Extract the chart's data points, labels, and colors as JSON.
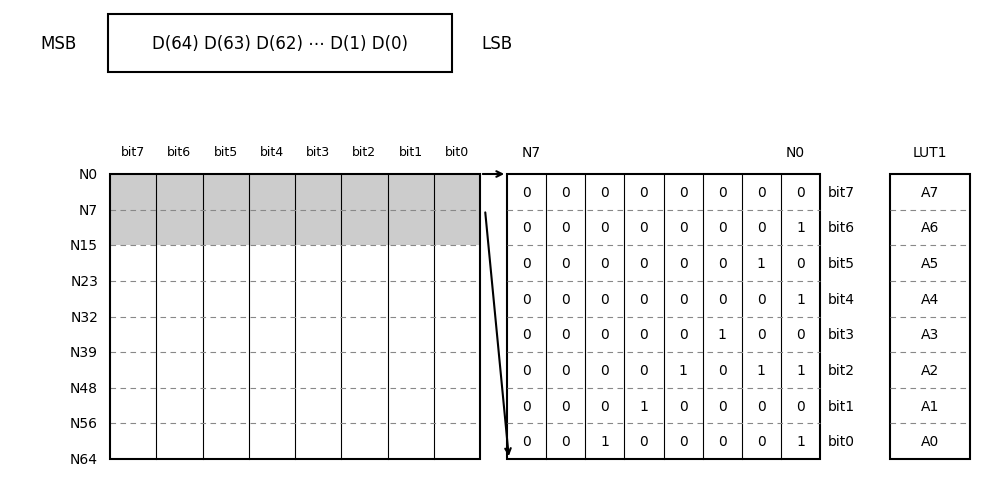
{
  "title_box": {
    "text": "D(64) D(63) D(62) ⋯ D(1) D(0)",
    "msb": "MSB",
    "lsb": "LSB"
  },
  "left_table": {
    "row_labels": [
      "N0",
      "N7",
      "N15",
      "N23",
      "N32",
      "N39",
      "N48",
      "N56",
      "N64"
    ],
    "col_labels": [
      "bit7",
      "bit6",
      "bit5",
      "bit4",
      "bit3",
      "bit2",
      "bit1",
      "bit0"
    ],
    "shaded_rows": [
      0,
      1
    ]
  },
  "right_table": {
    "header_left": "N7",
    "header_right": "N0",
    "row_labels": [
      "bit7",
      "bit6",
      "bit5",
      "bit4",
      "bit3",
      "bit2",
      "bit1",
      "bit0"
    ],
    "data": [
      [
        0,
        0,
        0,
        0,
        0,
        0,
        0,
        0
      ],
      [
        0,
        0,
        0,
        0,
        0,
        0,
        0,
        1
      ],
      [
        0,
        0,
        0,
        0,
        0,
        0,
        1,
        0
      ],
      [
        0,
        0,
        0,
        0,
        0,
        0,
        0,
        1
      ],
      [
        0,
        0,
        0,
        0,
        0,
        1,
        0,
        0
      ],
      [
        0,
        0,
        0,
        0,
        1,
        0,
        1,
        1
      ],
      [
        0,
        0,
        0,
        1,
        0,
        0,
        0,
        0
      ],
      [
        0,
        0,
        1,
        0,
        0,
        0,
        0,
        1
      ]
    ]
  },
  "lut_table": {
    "header": "LUT1",
    "labels": [
      "A7",
      "A6",
      "A5",
      "A4",
      "A3",
      "A2",
      "A1",
      "A0"
    ]
  },
  "colors": {
    "background": "#ffffff",
    "box_border": "#000000",
    "shaded": "#cccccc",
    "text": "#000000",
    "dash": "#888888"
  },
  "font_size": 10,
  "fig_width": 10.0,
  "fig_height": 4.85
}
